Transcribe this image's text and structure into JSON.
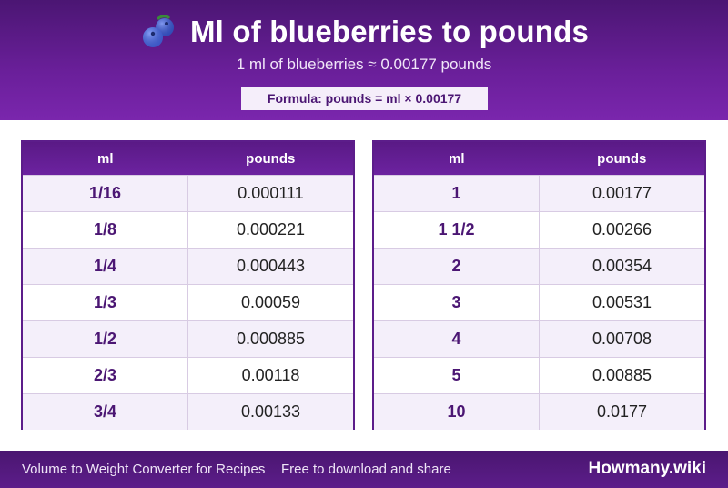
{
  "header": {
    "title": "Ml of blueberries to pounds",
    "icon": "blueberries-icon",
    "subtitle": "1 ml of blueberries ≈ 0.00177 pounds",
    "formula": "Formula: pounds = ml × 0.00177"
  },
  "tables": [
    {
      "col_ml": "ml",
      "col_pounds": "pounds",
      "rows": [
        {
          "ml": "1/16",
          "pounds": "0.000111"
        },
        {
          "ml": "1/8",
          "pounds": "0.000221"
        },
        {
          "ml": "1/4",
          "pounds": "0.000443"
        },
        {
          "ml": "1/3",
          "pounds": "0.00059"
        },
        {
          "ml": "1/2",
          "pounds": "0.000885"
        },
        {
          "ml": "2/3",
          "pounds": "0.00118"
        },
        {
          "ml": "3/4",
          "pounds": "0.00133"
        }
      ]
    },
    {
      "col_ml": "ml",
      "col_pounds": "pounds",
      "rows": [
        {
          "ml": "1",
          "pounds": "0.00177"
        },
        {
          "ml": "1 1/2",
          "pounds": "0.00266"
        },
        {
          "ml": "2",
          "pounds": "0.00354"
        },
        {
          "ml": "3",
          "pounds": "0.00531"
        },
        {
          "ml": "4",
          "pounds": "0.00708"
        },
        {
          "ml": "5",
          "pounds": "0.00885"
        },
        {
          "ml": "10",
          "pounds": "0.0177"
        }
      ]
    }
  ],
  "footer": {
    "left_text": "Volume to Weight Converter for Recipes",
    "middle_text": "Free to download and share",
    "brand": "Howmany.wiki"
  },
  "colors": {
    "header_purple": "#6a1f9a",
    "accent_text": "#4b1673",
    "row_alt": "#f4effa"
  }
}
